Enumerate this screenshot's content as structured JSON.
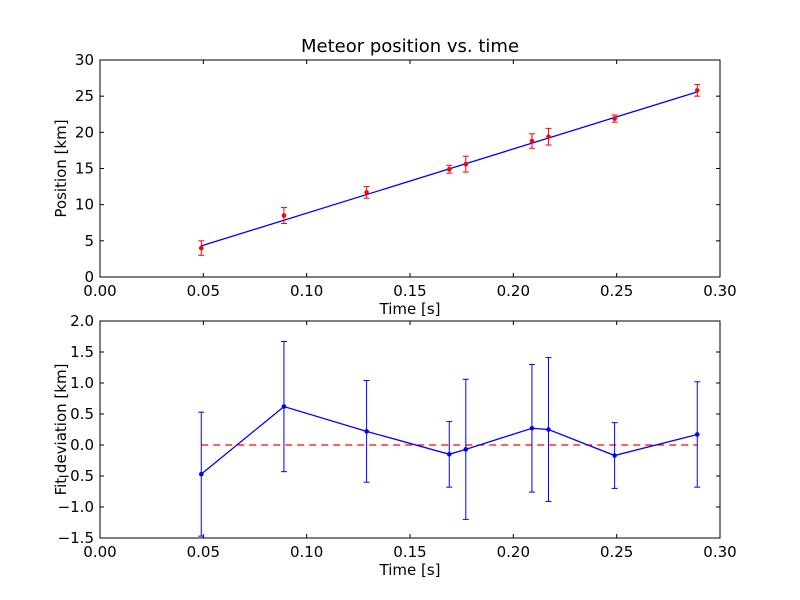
{
  "chart_data": [
    {
      "type": "scatter",
      "title": "Meteor position vs. time",
      "xlabel": "Time [s]",
      "ylabel": "Position [km]",
      "xlim": [
        0.0,
        0.3
      ],
      "ylim": [
        0,
        30
      ],
      "xticks": [
        "0.00",
        "0.05",
        "0.10",
        "0.15",
        "0.20",
        "0.25",
        "0.30"
      ],
      "yticks": [
        "0",
        "5",
        "10",
        "15",
        "20",
        "25",
        "30"
      ],
      "grid": false,
      "colors": {
        "points": "#ff0000",
        "errorbars": "#ff0000",
        "fit_line": "#0000ff"
      },
      "series": [
        {
          "kind": "points-with-errorbars",
          "x": [
            0.049,
            0.089,
            0.129,
            0.169,
            0.177,
            0.209,
            0.217,
            0.249,
            0.289
          ],
          "y": [
            4.0,
            8.5,
            11.7,
            14.9,
            15.6,
            18.8,
            19.4,
            21.9,
            25.8
          ],
          "yerr": [
            1.0,
            1.1,
            0.8,
            0.55,
            1.1,
            1.0,
            1.15,
            0.5,
            0.8
          ]
        },
        {
          "kind": "fit-line",
          "x": [
            0.049,
            0.289
          ],
          "y": [
            4.3,
            25.6
          ]
        }
      ]
    },
    {
      "type": "line",
      "xlabel": "Time [s]",
      "ylabel": "Fit deviation [km]",
      "xlim": [
        0.0,
        0.3
      ],
      "ylim": [
        -1.5,
        2.0
      ],
      "xticks": [
        "0.00",
        "0.05",
        "0.10",
        "0.15",
        "0.20",
        "0.25",
        "0.30"
      ],
      "yticks": [
        "−1.5",
        "−1.0",
        "−0.5",
        "0.0",
        "0.5",
        "1.0",
        "1.5",
        "2.0"
      ],
      "grid": false,
      "colors": {
        "line": "#0000ff",
        "zero_line": "#ff0000"
      },
      "series": [
        {
          "kind": "line-with-errorbars",
          "x": [
            0.049,
            0.089,
            0.129,
            0.169,
            0.177,
            0.209,
            0.217,
            0.249,
            0.289
          ],
          "y": [
            -0.47,
            0.62,
            0.22,
            -0.15,
            -0.07,
            0.27,
            0.25,
            -0.17,
            0.17
          ],
          "yerr": [
            1.0,
            1.05,
            0.82,
            0.53,
            1.13,
            1.03,
            1.16,
            0.53,
            0.85
          ]
        },
        {
          "kind": "reference-dashed",
          "x": [
            0.049,
            0.289
          ],
          "y": [
            0.0,
            0.0
          ]
        }
      ]
    }
  ]
}
